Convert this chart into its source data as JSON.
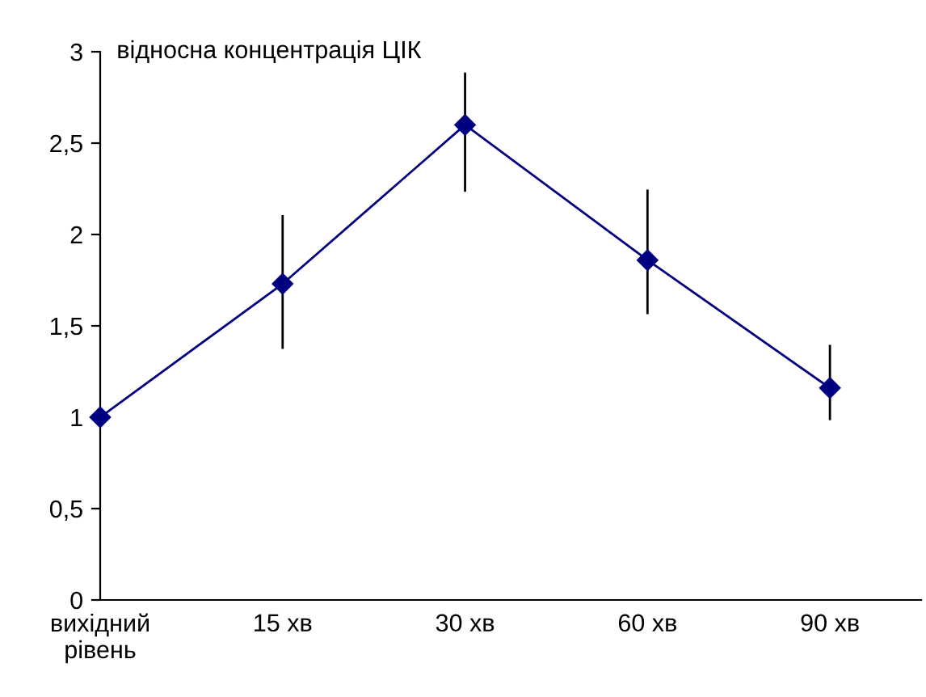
{
  "chart_data": {
    "type": "line",
    "ylabel": "відносна концентрація ЦІК",
    "categories": [
      "вихідний\nрівень",
      "15 хв",
      "30 хв",
      "60 хв",
      "90 хв"
    ],
    "series": [
      {
        "color": "#000080",
        "values": [
          1.0,
          1.73,
          2.6,
          1.86,
          1.16
        ],
        "errors": [
          null,
          [
            1.38,
            2.1
          ],
          [
            2.24,
            2.88
          ],
          [
            1.57,
            2.24
          ],
          [
            0.99,
            1.39
          ]
        ]
      }
    ],
    "ylim": [
      0,
      3
    ],
    "yticks": [
      0,
      {
        "value": 0.5,
        "label": "0,5"
      },
      1,
      {
        "value": 1.5,
        "label": "1,5"
      },
      2,
      {
        "value": 2.5,
        "label": "2,5"
      },
      3
    ],
    "marker": "diamond",
    "line_style": "solid",
    "grid": false,
    "legend": false
  }
}
